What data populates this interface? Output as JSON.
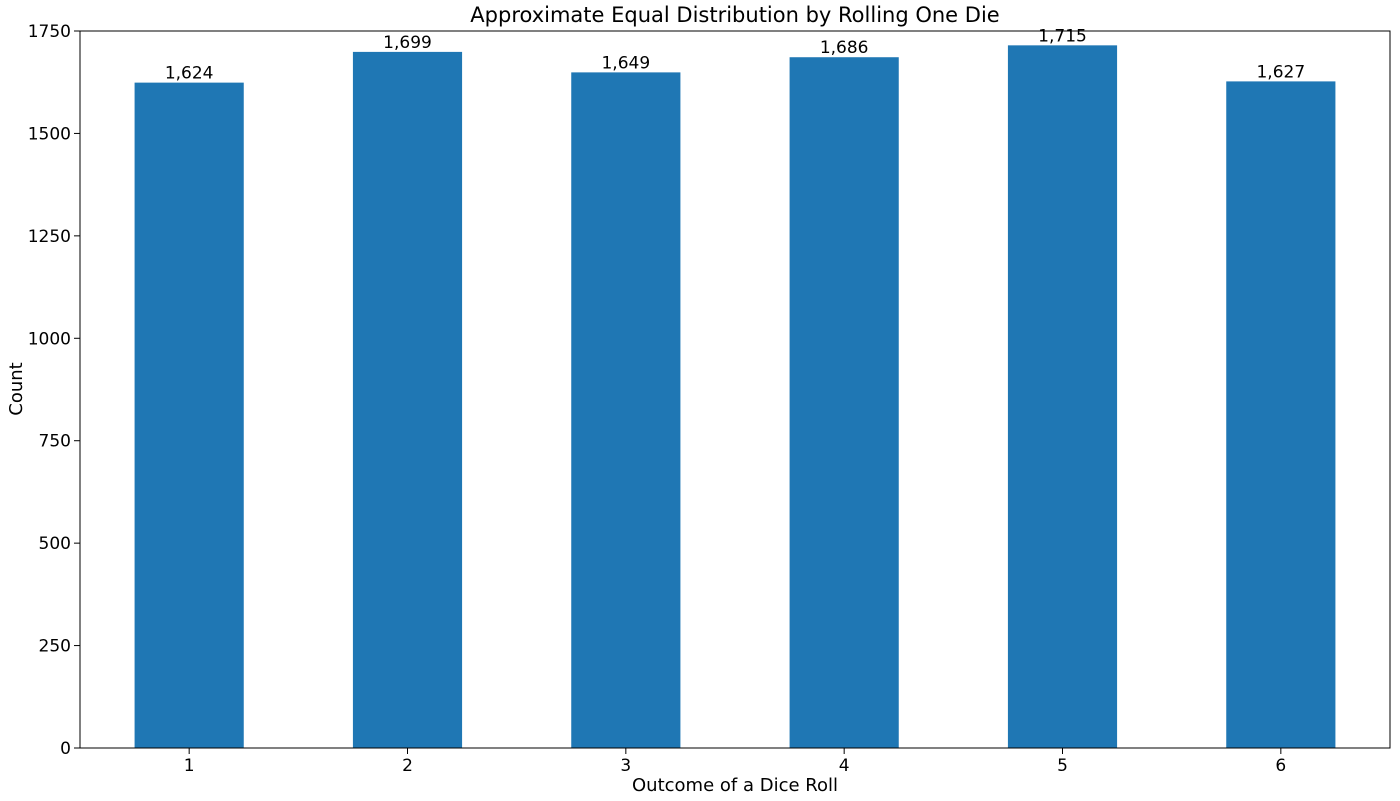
{
  "chart_data": {
    "type": "bar",
    "title": "Approximate Equal Distribution by Rolling One Die",
    "xlabel": "Outcome of a Dice Roll",
    "ylabel": "Count",
    "categories": [
      "1",
      "2",
      "3",
      "4",
      "5",
      "6"
    ],
    "values": [
      1624,
      1699,
      1649,
      1686,
      1715,
      1627
    ],
    "data_labels": [
      "1,624",
      "1,699",
      "1,649",
      "1,686",
      "1,715",
      "1,627"
    ],
    "ylim": [
      0,
      1750
    ],
    "yticks": [
      0,
      250,
      500,
      750,
      1000,
      1250,
      1500,
      1750
    ],
    "bar_color": "#1f77b4",
    "grid": false,
    "legend": "none"
  }
}
